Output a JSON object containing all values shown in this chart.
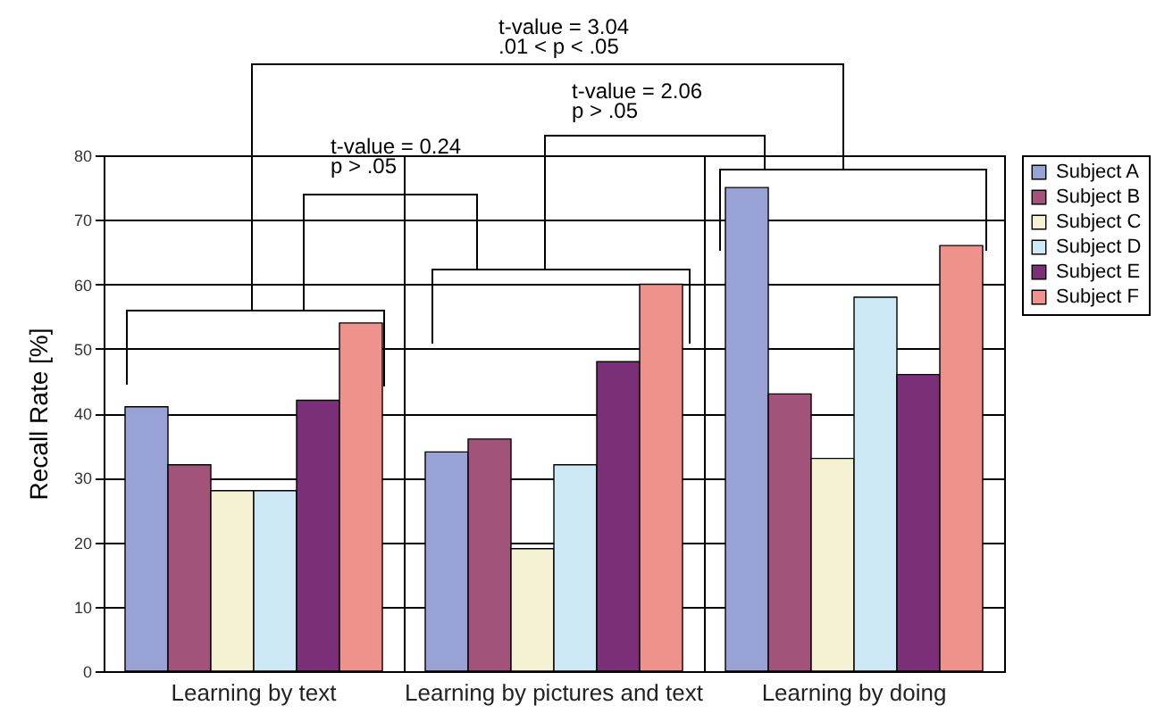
{
  "chart_data": {
    "type": "bar",
    "ylabel": "Recall Rate [%]",
    "categories": [
      "Learning by text",
      "Learning by pictures and text",
      "Learning by doing"
    ],
    "series": [
      {
        "name": "Subject A",
        "color": "#98a2d4",
        "values": [
          41,
          34,
          75
        ]
      },
      {
        "name": "Subject B",
        "color": "#a1537a",
        "values": [
          32,
          36,
          43
        ]
      },
      {
        "name": "Subject C",
        "color": "#f4f2d2",
        "values": [
          28,
          19,
          33
        ]
      },
      {
        "name": "Subject D",
        "color": "#cbe8f4",
        "values": [
          28,
          32,
          58
        ]
      },
      {
        "name": "Subject E",
        "color": "#7c2f79",
        "values": [
          42,
          48,
          46
        ]
      },
      {
        "name": "Subject F",
        "color": "#ef928c",
        "values": [
          54,
          60,
          66
        ]
      }
    ],
    "ylim": [
      0,
      80
    ],
    "yticks": [
      0,
      10,
      20,
      30,
      40,
      50,
      60,
      70,
      80
    ],
    "grid": true,
    "legend": "top right",
    "annotations": [
      "t-value = 3.04\n.01 < p < .05",
      "t-value = 2.06\np > .05",
      "t-value = 0.24\np > .05"
    ]
  }
}
